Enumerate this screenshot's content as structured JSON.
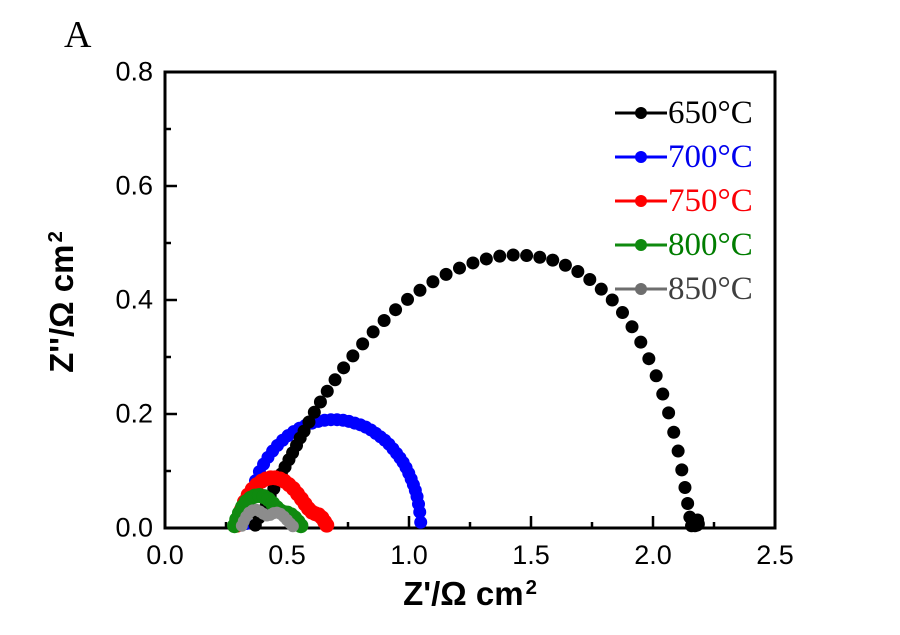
{
  "panel_label": "A",
  "axes": {
    "x": {
      "label": "Z'/Ω cm",
      "label_sup": "2",
      "tick_labels": [
        "0.0",
        "0.5",
        "1.0",
        "1.5",
        "2.0",
        "2.5"
      ],
      "tick_values": [
        0,
        0.5,
        1.0,
        1.5,
        2.0,
        2.5
      ],
      "minor_ticks": [
        0.25,
        0.75,
        1.25,
        1.75,
        2.25
      ],
      "range": [
        0.0,
        2.5
      ]
    },
    "y": {
      "label": "Z''/Ω cm",
      "label_sup": "2",
      "tick_labels": [
        "0.0",
        "0.2",
        "0.4",
        "0.6",
        "0.8"
      ],
      "tick_values": [
        0,
        0.2,
        0.4,
        0.6,
        0.8
      ],
      "minor_ticks": [
        0.1,
        0.3,
        0.5,
        0.7
      ],
      "range": [
        0.0,
        0.8
      ]
    }
  },
  "legend": {
    "position": "top-right",
    "items": [
      {
        "label": "650°C",
        "color": "#000000",
        "text_color": "#000000"
      },
      {
        "label": "700°C",
        "color": "#0000ff",
        "text_color": "#0000ee"
      },
      {
        "label": "750°C",
        "color": "#ff0000",
        "text_color": "#fb0006"
      },
      {
        "label": "800°C",
        "color": "#0f8a0f",
        "text_color": "#007d00"
      },
      {
        "label": "850°C",
        "color": "#6e6e6e",
        "text_color": "#3f3f3f"
      }
    ]
  },
  "chart_data": {
    "type": "scatter",
    "title": "",
    "xlabel": "Z'/Ω cm²",
    "ylabel": "Z''/Ω cm²",
    "xlim": [
      0.0,
      2.5
    ],
    "ylim": [
      0.0,
      0.8
    ],
    "grid": false,
    "frame": "box",
    "ticks": "inside",
    "legend_position": "top-right",
    "series": [
      {
        "name": "700°C",
        "color": "#0000ff",
        "marker_radius": 6.5,
        "points": [
          [
            0.335,
            0.008
          ],
          [
            0.345,
            0.045
          ],
          [
            0.357,
            0.066
          ],
          [
            0.371,
            0.083
          ],
          [
            0.387,
            0.099
          ],
          [
            0.404,
            0.112
          ],
          [
            0.422,
            0.124
          ],
          [
            0.441,
            0.135
          ],
          [
            0.461,
            0.145
          ],
          [
            0.482,
            0.154
          ],
          [
            0.504,
            0.162
          ],
          [
            0.527,
            0.169
          ],
          [
            0.551,
            0.175
          ],
          [
            0.576,
            0.18
          ],
          [
            0.602,
            0.184
          ],
          [
            0.628,
            0.187
          ],
          [
            0.654,
            0.189
          ],
          [
            0.68,
            0.19
          ],
          [
            0.705,
            0.19
          ],
          [
            0.73,
            0.189
          ],
          [
            0.754,
            0.187
          ],
          [
            0.778,
            0.184
          ],
          [
            0.801,
            0.181
          ],
          [
            0.823,
            0.177
          ],
          [
            0.844,
            0.172
          ],
          [
            0.864,
            0.166
          ],
          [
            0.883,
            0.16
          ],
          [
            0.901,
            0.154
          ],
          [
            0.918,
            0.147
          ],
          [
            0.934,
            0.139
          ],
          [
            0.949,
            0.131
          ],
          [
            0.963,
            0.123
          ],
          [
            0.976,
            0.115
          ],
          [
            0.988,
            0.106
          ],
          [
            0.999,
            0.096
          ],
          [
            1.009,
            0.086
          ],
          [
            1.018,
            0.076
          ],
          [
            1.026,
            0.066
          ],
          [
            1.033,
            0.055
          ],
          [
            1.039,
            0.042
          ],
          [
            1.044,
            0.028
          ],
          [
            1.048,
            0.01
          ]
        ]
      },
      {
        "name": "650°C",
        "color": "#000000",
        "marker_radius": 6.5,
        "points": [
          [
            0.37,
            0.005
          ],
          [
            0.385,
            0.018
          ],
          [
            0.4,
            0.031
          ],
          [
            0.416,
            0.044
          ],
          [
            0.431,
            0.056
          ],
          [
            0.446,
            0.069
          ],
          [
            0.462,
            0.082
          ],
          [
            0.477,
            0.095
          ],
          [
            0.492,
            0.107
          ],
          [
            0.508,
            0.12
          ],
          [
            0.523,
            0.132
          ],
          [
            0.539,
            0.145
          ],
          [
            0.554,
            0.158
          ],
          [
            0.57,
            0.17
          ],
          [
            0.59,
            0.186
          ],
          [
            0.612,
            0.203
          ],
          [
            0.637,
            0.221
          ],
          [
            0.665,
            0.24
          ],
          [
            0.697,
            0.26
          ],
          [
            0.732,
            0.281
          ],
          [
            0.77,
            0.302
          ],
          [
            0.81,
            0.323
          ],
          [
            0.853,
            0.344
          ],
          [
            0.898,
            0.364
          ],
          [
            0.945,
            0.383
          ],
          [
            0.994,
            0.401
          ],
          [
            1.045,
            0.417
          ],
          [
            1.098,
            0.432
          ],
          [
            1.152,
            0.445
          ],
          [
            1.207,
            0.456
          ],
          [
            1.262,
            0.465
          ],
          [
            1.317,
            0.472
          ],
          [
            1.372,
            0.477
          ],
          [
            1.427,
            0.479
          ],
          [
            1.482,
            0.478
          ],
          [
            1.536,
            0.475
          ],
          [
            1.589,
            0.47
          ],
          [
            1.641,
            0.461
          ],
          [
            1.692,
            0.45
          ],
          [
            1.741,
            0.436
          ],
          [
            1.788,
            0.419
          ],
          [
            1.833,
            0.4
          ],
          [
            1.875,
            0.378
          ],
          [
            1.914,
            0.353
          ],
          [
            1.95,
            0.326
          ],
          [
            1.983,
            0.297
          ],
          [
            2.013,
            0.267
          ],
          [
            2.04,
            0.235
          ],
          [
            2.064,
            0.202
          ],
          [
            2.085,
            0.168
          ],
          [
            2.103,
            0.135
          ],
          [
            2.118,
            0.102
          ],
          [
            2.131,
            0.071
          ],
          [
            2.142,
            0.043
          ],
          [
            2.151,
            0.019
          ],
          [
            2.158,
            0.004
          ],
          [
            2.166,
            0.01
          ],
          [
            2.172,
            0.004
          ],
          [
            2.176,
            0.012
          ],
          [
            2.18,
            0.005
          ],
          [
            2.183,
            0.014
          ],
          [
            2.186,
            0.007
          ]
        ]
      },
      {
        "name": "750°C",
        "color": "#ff0000",
        "marker_radius": 7.5,
        "points": [
          [
            0.295,
            0.005
          ],
          [
            0.303,
            0.018
          ],
          [
            0.313,
            0.032
          ],
          [
            0.326,
            0.046
          ],
          [
            0.341,
            0.058
          ],
          [
            0.358,
            0.068
          ],
          [
            0.376,
            0.076
          ],
          [
            0.395,
            0.082
          ],
          [
            0.414,
            0.086
          ],
          [
            0.433,
            0.088
          ],
          [
            0.452,
            0.088
          ],
          [
            0.471,
            0.086
          ],
          [
            0.49,
            0.082
          ],
          [
            0.508,
            0.076
          ],
          [
            0.526,
            0.069
          ],
          [
            0.543,
            0.06
          ],
          [
            0.559,
            0.051
          ],
          [
            0.574,
            0.042
          ],
          [
            0.588,
            0.034
          ],
          [
            0.602,
            0.028
          ],
          [
            0.616,
            0.025
          ],
          [
            0.63,
            0.023
          ],
          [
            0.643,
            0.018
          ],
          [
            0.654,
            0.011
          ],
          [
            0.663,
            0.005
          ]
        ]
      },
      {
        "name": "800°C",
        "color": "#0f8a0f",
        "marker_radius": 7.5,
        "points": [
          [
            0.285,
            0.004
          ],
          [
            0.294,
            0.015
          ],
          [
            0.305,
            0.026
          ],
          [
            0.318,
            0.037
          ],
          [
            0.333,
            0.046
          ],
          [
            0.35,
            0.052
          ],
          [
            0.368,
            0.056
          ],
          [
            0.387,
            0.057
          ],
          [
            0.406,
            0.055
          ],
          [
            0.424,
            0.05
          ],
          [
            0.441,
            0.043
          ],
          [
            0.457,
            0.036
          ],
          [
            0.472,
            0.03
          ],
          [
            0.487,
            0.027
          ],
          [
            0.502,
            0.026
          ],
          [
            0.517,
            0.023
          ],
          [
            0.531,
            0.018
          ],
          [
            0.545,
            0.011
          ],
          [
            0.557,
            0.004
          ]
        ]
      },
      {
        "name": "850°C",
        "color": "#8c8c8c",
        "marker_radius": 6,
        "points": [
          [
            0.315,
            0.004
          ],
          [
            0.323,
            0.012
          ],
          [
            0.333,
            0.02
          ],
          [
            0.345,
            0.027
          ],
          [
            0.359,
            0.031
          ],
          [
            0.374,
            0.032
          ],
          [
            0.389,
            0.029
          ],
          [
            0.403,
            0.025
          ],
          [
            0.417,
            0.022
          ],
          [
            0.431,
            0.023
          ],
          [
            0.445,
            0.026
          ],
          [
            0.459,
            0.027
          ],
          [
            0.473,
            0.025
          ],
          [
            0.487,
            0.02
          ],
          [
            0.5,
            0.014
          ],
          [
            0.513,
            0.008
          ],
          [
            0.524,
            0.003
          ]
        ]
      }
    ]
  }
}
